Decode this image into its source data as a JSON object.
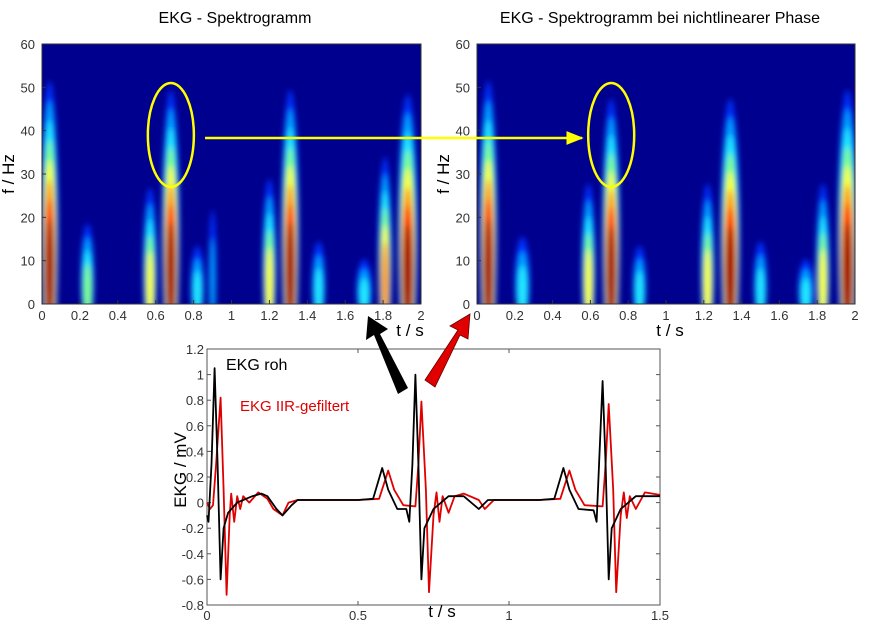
{
  "chart_data": [
    {
      "type": "heatmap",
      "title": "EKG - Spektrogramm",
      "xlabel": "t / s",
      "ylabel": "f / Hz",
      "xlim": [
        0,
        2
      ],
      "ylim": [
        0,
        60
      ],
      "xticks": [
        "0",
        "0.2",
        "0.4",
        "0.6",
        "0.8",
        "1",
        "1.2",
        "1.4",
        "1.6",
        "1.8",
        "2"
      ],
      "yticks": [
        "0",
        "10",
        "20",
        "30",
        "40",
        "50",
        "60"
      ],
      "colormap": "jet",
      "background": "#00008f",
      "energy_bursts": [
        {
          "t": 0.04,
          "width": 0.09,
          "fmax": 50,
          "intensity": 1.0
        },
        {
          "t": 0.24,
          "width": 0.07,
          "fmax": 18,
          "intensity": 0.45
        },
        {
          "t": 0.57,
          "width": 0.07,
          "fmax": 26,
          "intensity": 0.65
        },
        {
          "t": 0.68,
          "width": 0.09,
          "fmax": 48,
          "intensity": 1.0
        },
        {
          "t": 0.82,
          "width": 0.07,
          "fmax": 13,
          "intensity": 0.4
        },
        {
          "t": 0.9,
          "width": 0.04,
          "fmax": 21,
          "intensity": 0.3
        },
        {
          "t": 1.2,
          "width": 0.07,
          "fmax": 28,
          "intensity": 0.65
        },
        {
          "t": 1.31,
          "width": 0.09,
          "fmax": 48,
          "intensity": 1.0
        },
        {
          "t": 1.46,
          "width": 0.07,
          "fmax": 14,
          "intensity": 0.4
        },
        {
          "t": 1.7,
          "width": 0.08,
          "fmax": 10,
          "intensity": 0.4
        },
        {
          "t": 1.81,
          "width": 0.07,
          "fmax": 33,
          "intensity": 0.7
        },
        {
          "t": 1.93,
          "width": 0.1,
          "fmax": 47,
          "intensity": 1.0
        }
      ],
      "annotation": {
        "type": "ellipse",
        "t": 0.68,
        "f": 39,
        "color": "#ffff00"
      }
    },
    {
      "type": "heatmap",
      "title": "EKG - Spektrogramm  bei nichtlinearer Phase",
      "xlabel": "t / s",
      "ylabel": "f / Hz",
      "xlim": [
        0,
        2
      ],
      "ylim": [
        0,
        60
      ],
      "xticks": [
        "0",
        "0.2",
        "0.4",
        "0.6",
        "0.8",
        "1",
        "1.2",
        "1.4",
        "1.6",
        "1.8",
        "2"
      ],
      "yticks": [
        "0",
        "10",
        "20",
        "30",
        "40",
        "50",
        "60"
      ],
      "colormap": "jet",
      "background": "#00008f",
      "energy_bursts": [
        {
          "t": 0.06,
          "width": 0.09,
          "fmax": 50,
          "intensity": 1.0
        },
        {
          "t": 0.24,
          "width": 0.08,
          "fmax": 15,
          "intensity": 0.4
        },
        {
          "t": 0.59,
          "width": 0.07,
          "fmax": 27,
          "intensity": 0.65
        },
        {
          "t": 0.71,
          "width": 0.09,
          "fmax": 46,
          "intensity": 1.0
        },
        {
          "t": 0.86,
          "width": 0.07,
          "fmax": 13,
          "intensity": 0.4
        },
        {
          "t": 1.22,
          "width": 0.07,
          "fmax": 27,
          "intensity": 0.6
        },
        {
          "t": 1.34,
          "width": 0.1,
          "fmax": 46,
          "intensity": 1.0
        },
        {
          "t": 1.5,
          "width": 0.07,
          "fmax": 14,
          "intensity": 0.4
        },
        {
          "t": 1.74,
          "width": 0.08,
          "fmax": 10,
          "intensity": 0.4
        },
        {
          "t": 1.83,
          "width": 0.07,
          "fmax": 27,
          "intensity": 0.65
        },
        {
          "t": 1.96,
          "width": 0.1,
          "fmax": 48,
          "intensity": 1.0
        }
      ],
      "annotation": {
        "type": "ellipse",
        "t": 0.71,
        "f": 39,
        "color": "#ffff00"
      }
    },
    {
      "type": "line",
      "xlabel": "t / s",
      "ylabel": "EKG / mV",
      "xlim": [
        0,
        1.5
      ],
      "ylim": [
        -0.8,
        1.2
      ],
      "xticks": [
        "0",
        "0.5",
        "1",
        "1.5"
      ],
      "yticks": [
        "-0.8",
        "-0.6",
        "-0.4",
        "-0.2",
        "0",
        "0.2",
        "0.4",
        "0.6",
        "0.8",
        "1",
        "1.2"
      ],
      "legend_placement": "top-left",
      "series": [
        {
          "name": "EKG roh",
          "color": "#000000",
          "x": [
            0,
            0.005,
            0.015,
            0.025,
            0.035,
            0.045,
            0.055,
            0.07,
            0.1,
            0.15,
            0.18,
            0.2,
            0.23,
            0.25,
            0.28,
            0.3,
            0.4,
            0.5,
            0.55,
            0.58,
            0.6,
            0.63,
            0.66,
            0.67,
            0.68,
            0.69,
            0.7,
            0.71,
            0.72,
            0.75,
            0.8,
            0.85,
            0.9,
            0.93,
            1.0,
            1.1,
            1.15,
            1.18,
            1.2,
            1.23,
            1.28,
            1.29,
            1.3,
            1.31,
            1.32,
            1.33,
            1.34,
            1.37,
            1.42,
            1.5
          ],
          "y": [
            -0.1,
            -0.15,
            0.3,
            1.05,
            0.3,
            -0.6,
            -0.2,
            -0.08,
            0,
            0.05,
            0.07,
            0.05,
            -0.05,
            -0.1,
            -0.02,
            0.02,
            0.02,
            0.02,
            0.03,
            0.27,
            0.1,
            -0.05,
            -0.05,
            -0.15,
            0.3,
            1.0,
            0.3,
            -0.6,
            -0.2,
            -0.05,
            0.05,
            0.05,
            -0.05,
            0.02,
            0.02,
            0.02,
            0.03,
            0.27,
            0.1,
            -0.05,
            -0.06,
            -0.15,
            0.4,
            0.95,
            0.3,
            -0.6,
            -0.2,
            -0.05,
            0.05,
            0.05
          ]
        },
        {
          "name": "EKG IIR-gefiltert",
          "color": "#e00000",
          "x": [
            0,
            0.01,
            0.02,
            0.03,
            0.045,
            0.055,
            0.065,
            0.075,
            0.08,
            0.09,
            0.1,
            0.11,
            0.12,
            0.14,
            0.17,
            0.2,
            0.22,
            0.25,
            0.27,
            0.3,
            0.4,
            0.5,
            0.57,
            0.6,
            0.62,
            0.65,
            0.69,
            0.7,
            0.71,
            0.725,
            0.735,
            0.75,
            0.76,
            0.77,
            0.78,
            0.8,
            0.82,
            0.85,
            0.9,
            0.92,
            0.95,
            1.0,
            1.1,
            1.17,
            1.2,
            1.22,
            1.25,
            1.31,
            1.32,
            1.33,
            1.345,
            1.355,
            1.37,
            1.38,
            1.39,
            1.4,
            1.42,
            1.45,
            1.5
          ],
          "y": [
            0,
            -0.05,
            -0.02,
            0.3,
            0.82,
            0.1,
            -0.72,
            -0.1,
            0.07,
            -0.15,
            0.05,
            -0.05,
            0.05,
            0,
            0.08,
            0.03,
            -0.05,
            -0.1,
            0,
            0.02,
            0.02,
            0.02,
            0.03,
            0.25,
            0.1,
            -0.02,
            -0.03,
            0.3,
            0.79,
            0.1,
            -0.7,
            -0.1,
            0.08,
            -0.15,
            0.05,
            -0.08,
            0.05,
            0.07,
            0.02,
            -0.05,
            0.02,
            0.02,
            0.02,
            0.03,
            0.25,
            0.1,
            -0.02,
            -0.03,
            0.3,
            0.77,
            0.1,
            -0.7,
            -0.1,
            0.08,
            -0.12,
            0.05,
            -0.05,
            0.08,
            0.06
          ]
        }
      ]
    }
  ]
}
